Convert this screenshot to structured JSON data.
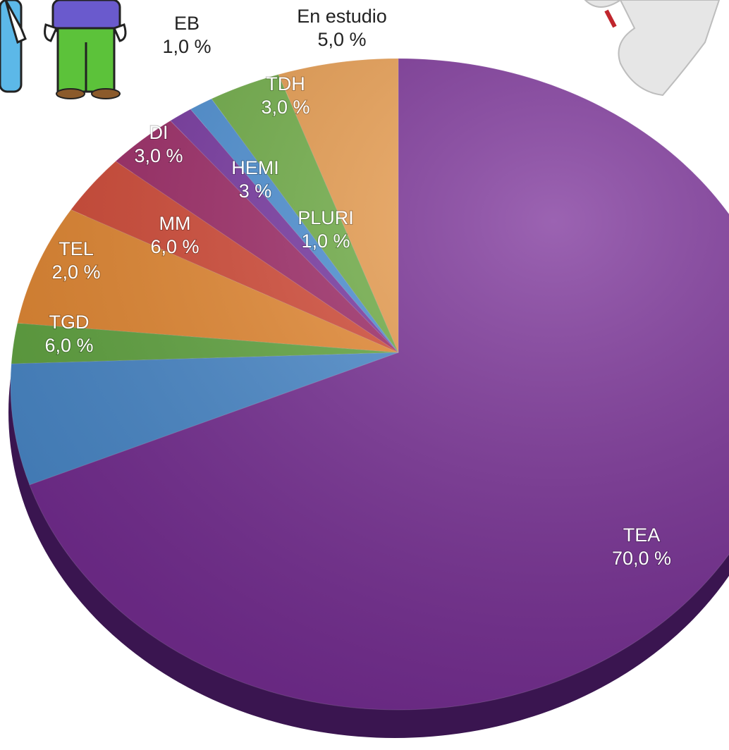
{
  "chart_data": {
    "type": "pie",
    "categories": [
      "TEA",
      "TGD",
      "TEL",
      "MM",
      "DI",
      "HEMI",
      "PLURI",
      "EB",
      "TDH",
      "En estudio"
    ],
    "values": [
      70,
      6,
      2,
      6,
      3,
      3,
      1,
      1,
      3,
      5
    ],
    "value_labels": [
      "70,0 %",
      "6,0 %",
      "2,0 %",
      "6,0 %",
      "3,0 %",
      "3 %",
      "1,0 %",
      "1,0 %",
      "3,0 %",
      "5,0 %"
    ],
    "colors": [
      "#7a2f98",
      "#4d8fd3",
      "#66ad44",
      "#ef8f35",
      "#dc4e3a",
      "#a52d6c",
      "#7d3aa8",
      "#4f95dc",
      "#74b449",
      "#f0a150"
    ]
  }
}
